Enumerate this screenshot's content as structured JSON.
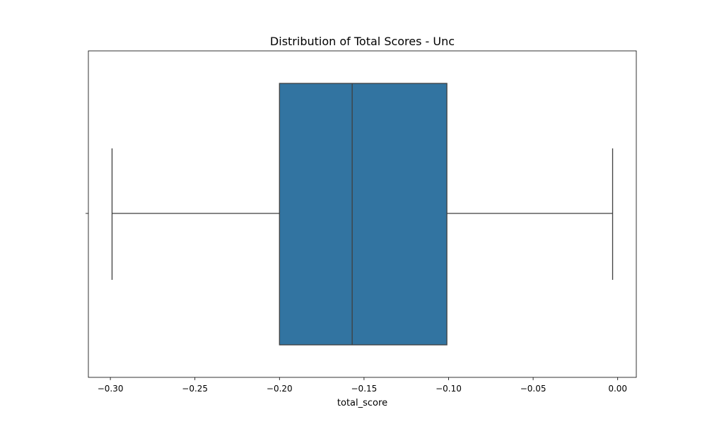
{
  "chart_data": {
    "type": "box",
    "title": "Distribution of Total Scores - Unc",
    "xlabel": "total_score",
    "ylabel": "",
    "orientation": "horizontal",
    "xlim": [
      -0.313,
      0.011
    ],
    "xticks": [
      -0.3,
      -0.25,
      -0.2,
      -0.15,
      -0.1,
      -0.05,
      0.0
    ],
    "xtick_labels": [
      "−0.30",
      "−0.25",
      "−0.20",
      "−0.15",
      "−0.10",
      "−0.05",
      "0.00"
    ],
    "grid": false,
    "legend": "none",
    "box": {
      "whisker_low": -0.299,
      "q1": -0.2,
      "median": -0.157,
      "q3": -0.101,
      "whisker_high": -0.003
    },
    "colors": {
      "box_fill": "#3274a1",
      "line": "#3f3f3f",
      "axis": "#000000"
    }
  }
}
